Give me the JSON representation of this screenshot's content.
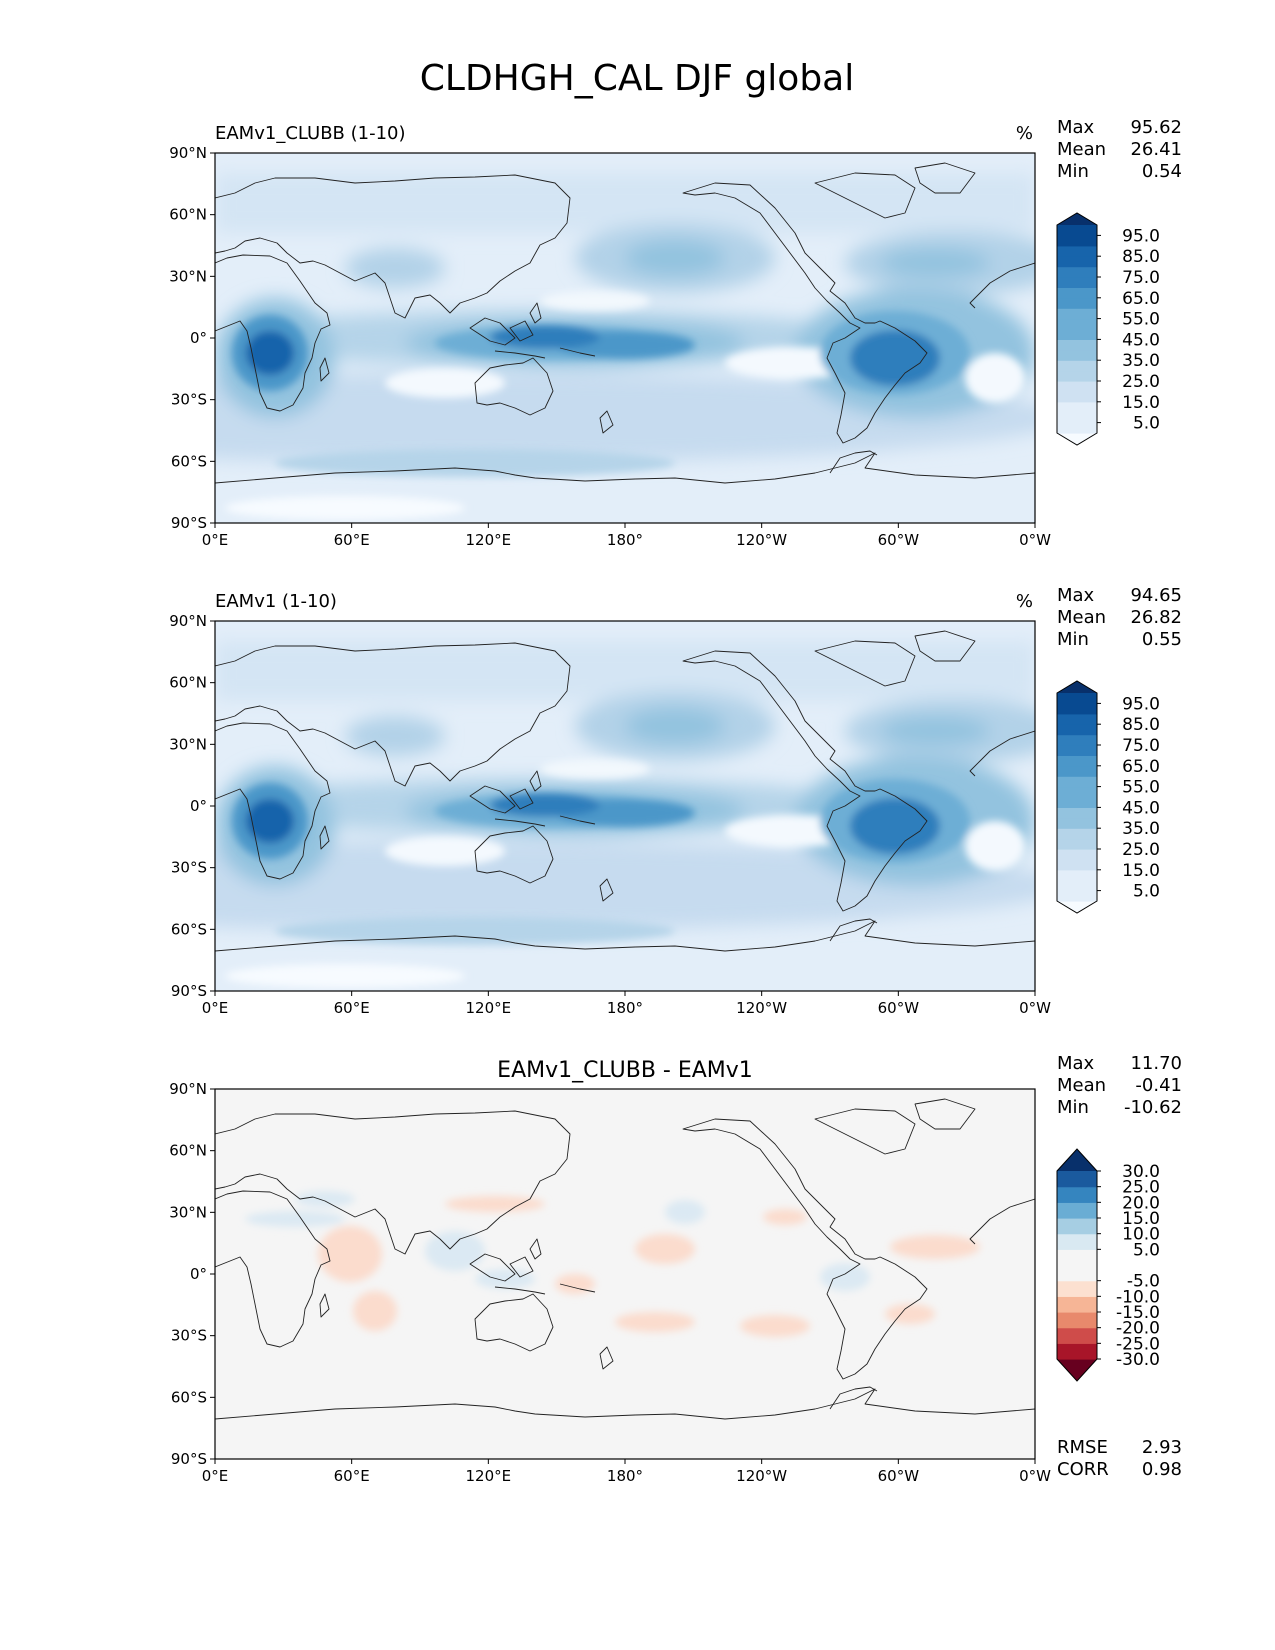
{
  "figure_title": "CLDHGH_CAL DJF global",
  "chart_data": [
    {
      "type": "heatmap",
      "title": "EAMv1_CLUBB (1-10)",
      "units": "%",
      "stats": [
        {
          "label": "Max",
          "value": "95.62"
        },
        {
          "label": "Mean",
          "value": "26.41"
        },
        {
          "label": "Min",
          "value": "0.54"
        }
      ],
      "colorbar": {
        "levels": [
          0,
          5,
          10,
          15,
          20,
          25,
          30,
          35,
          40,
          45,
          50,
          55,
          60,
          65,
          70,
          75,
          80,
          85,
          90,
          95,
          100
        ],
        "tick_labels": [
          "5.0",
          "15.0",
          "25.0",
          "35.0",
          "45.0",
          "55.0",
          "65.0",
          "75.0",
          "85.0",
          "95.0"
        ],
        "tick_values": [
          5,
          15,
          25,
          35,
          45,
          55,
          65,
          75,
          85,
          95
        ],
        "colors": [
          "#f7fbff",
          "#e3eef9",
          "#cfe1f2",
          "#b5d4e9",
          "#93c3df",
          "#6daed5",
          "#4b97c9",
          "#2f7ebc",
          "#1764ab",
          "#084a91",
          "#08306b"
        ]
      },
      "x_ticks": [
        "0°E",
        "60°E",
        "120°E",
        "180°",
        "120°W",
        "60°W",
        "0°W"
      ],
      "y_ticks": [
        "90°N",
        "60°N",
        "30°N",
        "0°",
        "30°S",
        "60°S",
        "90°S"
      ],
      "xlim": [
        0,
        360
      ],
      "ylim": [
        -90,
        90
      ]
    },
    {
      "type": "heatmap",
      "title": "EAMv1 (1-10)",
      "units": "%",
      "stats": [
        {
          "label": "Max",
          "value": "94.65"
        },
        {
          "label": "Mean",
          "value": "26.82"
        },
        {
          "label": "Min",
          "value": "0.55"
        }
      ],
      "colorbar": {
        "levels": [
          0,
          5,
          10,
          15,
          20,
          25,
          30,
          35,
          40,
          45,
          50,
          55,
          60,
          65,
          70,
          75,
          80,
          85,
          90,
          95,
          100
        ],
        "tick_labels": [
          "5.0",
          "15.0",
          "25.0",
          "35.0",
          "45.0",
          "55.0",
          "65.0",
          "75.0",
          "85.0",
          "95.0"
        ],
        "tick_values": [
          5,
          15,
          25,
          35,
          45,
          55,
          65,
          75,
          85,
          95
        ],
        "colors": [
          "#f7fbff",
          "#e3eef9",
          "#cfe1f2",
          "#b5d4e9",
          "#93c3df",
          "#6daed5",
          "#4b97c9",
          "#2f7ebc",
          "#1764ab",
          "#084a91",
          "#08306b"
        ]
      },
      "x_ticks": [
        "0°E",
        "60°E",
        "120°E",
        "180°",
        "120°W",
        "60°W",
        "0°W"
      ],
      "y_ticks": [
        "90°N",
        "60°N",
        "30°N",
        "0°",
        "30°S",
        "60°S",
        "90°S"
      ],
      "xlim": [
        0,
        360
      ],
      "ylim": [
        -90,
        90
      ]
    },
    {
      "type": "heatmap",
      "title": "EAMv1_CLUBB - EAMv1",
      "units": "",
      "stats": [
        {
          "label": "Max",
          "value": "11.70"
        },
        {
          "label": "Mean",
          "value": "-0.41"
        },
        {
          "label": "Min",
          "value": "-10.62"
        }
      ],
      "bottom_stats": [
        {
          "label": "RMSE",
          "value": "2.93"
        },
        {
          "label": "CORR",
          "value": "0.98"
        }
      ],
      "colorbar": {
        "levels": [
          -30,
          -25,
          -20,
          -15,
          -10,
          -5,
          5,
          10,
          15,
          20,
          25,
          30
        ],
        "tick_labels": [
          "-30.0",
          "-25.0",
          "-20.0",
          "-15.0",
          "-10.0",
          "-5.0",
          "5.0",
          "10.0",
          "15.0",
          "20.0",
          "25.0",
          "30.0"
        ],
        "tick_values": [
          -30,
          -25,
          -20,
          -15,
          -10,
          -5,
          5,
          10,
          15,
          20,
          25,
          30
        ],
        "colors": [
          "#67001f",
          "#a81529",
          "#cf4c4a",
          "#e8896c",
          "#f6b596",
          "#fce0d0",
          "#f5f5f5",
          "#d9e9f2",
          "#a6cee3",
          "#6aadd4",
          "#3585bf",
          "#1a5a9e",
          "#08306b"
        ]
      },
      "x_ticks": [
        "0°E",
        "60°E",
        "120°E",
        "180°",
        "120°W",
        "60°W",
        "0°W"
      ],
      "y_ticks": [
        "90°N",
        "60°N",
        "30°N",
        "0°",
        "30°S",
        "60°S",
        "90°S"
      ],
      "xlim": [
        0,
        360
      ],
      "ylim": [
        -90,
        90
      ]
    }
  ]
}
